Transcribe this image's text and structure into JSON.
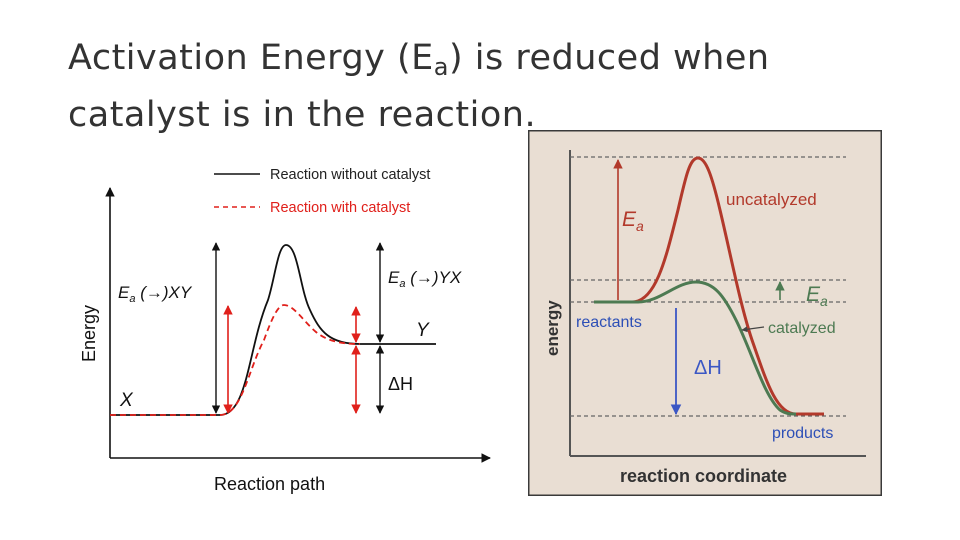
{
  "title": {
    "line1_before": "Activation Energy (E",
    "line1_sub": "a",
    "line1_after": ") is reduced when",
    "line2": "catalyst is in the reaction."
  },
  "left_figure": {
    "legend_without": "Reaction without catalyst",
    "legend_with": "Reaction with catalyst",
    "y_axis_label": "Energy",
    "x_axis_label": "Reaction path",
    "ea_forward_label": "E",
    "ea_forward_sub": "a",
    "ea_forward_suffix": " (→)XY",
    "ea_reverse_label": "E",
    "ea_reverse_sub": "a",
    "ea_reverse_suffix": " (→)YX",
    "reactant_label": "X",
    "product_label": "Y",
    "delta_h_label": "ΔH",
    "colors": {
      "uncatalyzed": "#111111",
      "catalyzed": "#e0201b"
    }
  },
  "right_figure": {
    "y_axis_label": "energy",
    "x_axis_label": "reaction coordinate",
    "uncatalyzed_label": "uncatalyzed",
    "catalyzed_label": "catalyzed",
    "reactants_label": "reactants",
    "products_label": "products",
    "ea_uncatalyzed_label": "E",
    "ea_uncatalyzed_sub": "a",
    "ea_catalyzed_label": "E",
    "ea_catalyzed_sub": "a",
    "delta_h_label": "ΔH",
    "colors": {
      "panel": "#e9ded3",
      "uncatalyzed": "#b2392b",
      "catalyzed": "#4d7a52",
      "blue_text": "#2d4fb6",
      "arrow_blue": "#3b57c4"
    }
  }
}
